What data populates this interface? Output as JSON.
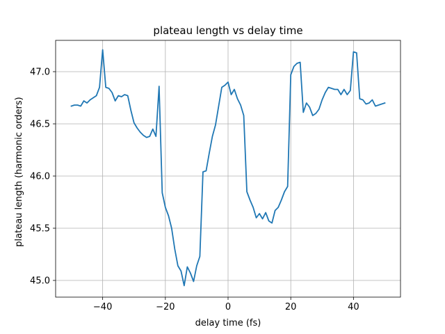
{
  "chart_data": {
    "type": "line",
    "title": "plateau length vs delay time",
    "xlabel": "delay time (fs)",
    "ylabel": "plateau length (harmonic orders)",
    "xlim": [
      -55,
      55
    ],
    "ylim": [
      44.84,
      47.3
    ],
    "xticks": [
      -40,
      -20,
      0,
      20,
      40
    ],
    "yticks": [
      45.0,
      45.5,
      46.0,
      46.5,
      47.0
    ],
    "xtick_labels": [
      "−40",
      "−20",
      "0",
      "20",
      "40"
    ],
    "ytick_labels": [
      "45.0",
      "45.5",
      "46.0",
      "46.5",
      "47.0"
    ],
    "grid": true,
    "line_color": "#1f77b4",
    "series": [
      {
        "x": [
          -50,
          -49,
          -48,
          -47,
          -46,
          -45,
          -44,
          -43,
          -42,
          -41,
          -40,
          -39,
          -38,
          -37,
          -36,
          -35,
          -34,
          -33,
          -32,
          -31,
          -30,
          -29,
          -28,
          -27,
          -26,
          -25,
          -24,
          -23,
          -22,
          -21,
          -20,
          -19,
          -18,
          -17,
          -16,
          -15,
          -14,
          -13,
          -12,
          -11,
          -10,
          -9,
          -8,
          -7,
          -6,
          -5,
          -4,
          -3,
          -2,
          -1,
          0,
          1,
          2,
          3,
          4,
          5,
          6,
          7,
          8,
          9,
          10,
          11,
          12,
          13,
          14,
          15,
          16,
          17,
          18,
          19,
          20,
          21,
          22,
          23,
          24,
          25,
          26,
          27,
          28,
          29,
          30,
          31,
          32,
          33,
          34,
          35,
          36,
          37,
          38,
          39,
          40,
          41,
          42,
          43,
          44,
          45,
          46,
          47,
          48,
          49,
          50
        ],
        "values": [
          46.67,
          46.68,
          46.68,
          46.67,
          46.72,
          46.7,
          46.73,
          46.75,
          46.77,
          46.85,
          47.21,
          46.85,
          46.84,
          46.8,
          46.72,
          46.77,
          46.76,
          46.78,
          46.77,
          46.63,
          46.51,
          46.46,
          46.42,
          46.39,
          46.37,
          46.38,
          46.45,
          46.38,
          46.86,
          45.84,
          45.7,
          45.62,
          45.5,
          45.3,
          45.14,
          45.09,
          44.95,
          45.13,
          45.07,
          44.99,
          45.14,
          45.23,
          46.04,
          46.05,
          46.22,
          46.38,
          46.49,
          46.67,
          46.85,
          46.87,
          46.9,
          46.78,
          46.83,
          46.74,
          46.68,
          46.58,
          45.85,
          45.77,
          45.7,
          45.6,
          45.64,
          45.59,
          45.65,
          45.57,
          45.55,
          45.67,
          45.7,
          45.77,
          45.85,
          45.9,
          46.97,
          47.05,
          47.08,
          47.09,
          46.61,
          46.7,
          46.66,
          46.58,
          46.6,
          46.64,
          46.73,
          46.8,
          46.85,
          46.84,
          46.83,
          46.83,
          46.78,
          46.83,
          46.78,
          46.82,
          47.19,
          47.18,
          46.74,
          46.73,
          46.69,
          46.7,
          46.73,
          46.67,
          46.68,
          46.69,
          46.7
        ]
      }
    ]
  }
}
